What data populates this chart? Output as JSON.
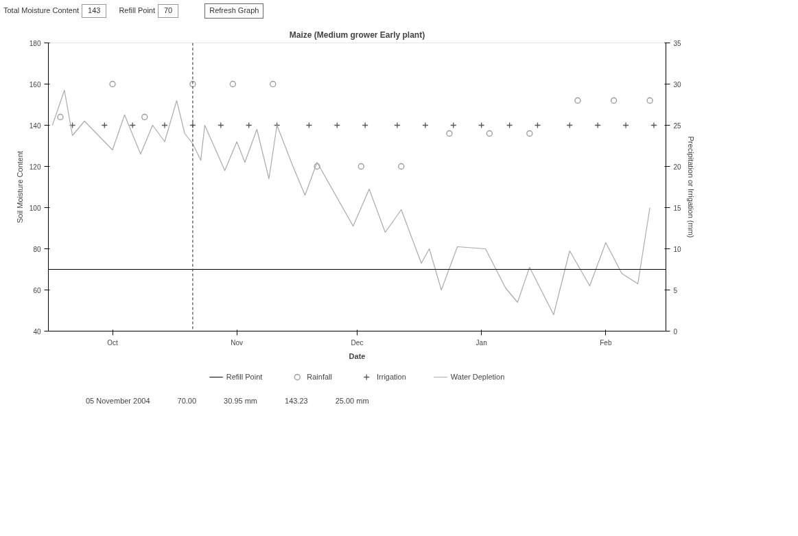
{
  "chart_data": {
    "type": "line",
    "title": "Maize (Medium grower Early plant)",
    "xlabel": "Date",
    "ylabel": "Soil Moisture Content",
    "y2label": "Precipitation or Irrigation (mm)",
    "annotations": [
      "Total Moisture Content",
      "143",
      "Refill Point",
      "70",
      "Refresh Graph",
      "05 November 2004",
      "70.00",
      "30.95 mm",
      "143.23",
      "25.00 mm"
    ],
    "xlim": [
      "2004-09-15",
      "2005-02-16"
    ],
    "xticks": [
      {
        "value": "2004-10-01",
        "label": "Oct"
      },
      {
        "value": "2004-11-01",
        "label": "Nov"
      },
      {
        "value": "2004-12-01",
        "label": "Dec"
      },
      {
        "value": "2005-01-01",
        "label": "Jan"
      },
      {
        "value": "2005-02-01",
        "label": "Feb"
      }
    ],
    "ylim": [
      40,
      180
    ],
    "yticks": [
      40,
      60,
      80,
      100,
      120,
      140,
      160,
      180
    ],
    "y2lim": [
      0,
      35
    ],
    "y2ticks": [
      0,
      5,
      10,
      15,
      20,
      25,
      30,
      35
    ],
    "ref_lines": [
      {
        "axis": "y",
        "value": 70,
        "label": "Refill Point",
        "color": "#000000",
        "line_style": "solid"
      },
      {
        "axis": "x",
        "value": "2004-10-21",
        "color": "#444444",
        "line_style": "dashed"
      }
    ],
    "legend": "bottom",
    "grid": false,
    "series": [
      {
        "name": "Rainfall",
        "type": "scatter",
        "marker": "circle",
        "axis": "y2",
        "color": "#999999",
        "x": [
          "2004-09-18",
          "2004-10-01",
          "2004-10-09",
          "2004-10-21",
          "2004-10-31",
          "2004-11-10",
          "2004-11-21",
          "2004-12-02",
          "2004-12-12",
          "2004-12-24",
          "2005-01-03",
          "2005-01-13",
          "2005-01-25",
          "2005-02-03",
          "2005-02-12"
        ],
        "values": [
          26,
          30,
          26,
          30,
          30,
          30,
          20,
          20,
          20,
          24,
          24,
          24,
          28,
          28,
          28
        ]
      },
      {
        "name": "Irrigation",
        "type": "scatter",
        "marker": "cross",
        "axis": "y2",
        "color": "#555555",
        "x": [
          "2004-09-21",
          "2004-09-29",
          "2004-10-06",
          "2004-10-14",
          "2004-10-21",
          "2004-10-28",
          "2004-11-04",
          "2004-11-11",
          "2004-11-19",
          "2004-11-26",
          "2004-12-03",
          "2004-12-11",
          "2004-12-18",
          "2004-12-25",
          "2005-01-01",
          "2005-01-08",
          "2005-01-15",
          "2005-01-23",
          "2005-01-30",
          "2005-02-06",
          "2005-02-13"
        ],
        "values": [
          25,
          25,
          25,
          25,
          25,
          25,
          25,
          25,
          25,
          25,
          25,
          25,
          25,
          25,
          25,
          25,
          25,
          25,
          25,
          25,
          25
        ]
      },
      {
        "name": "Water Depletion",
        "color": "#aaaaaa",
        "x": [
          "2004-09-16",
          "2004-09-19",
          "2004-09-21",
          "2004-09-24",
          "2004-10-01",
          "2004-10-04",
          "2004-10-08",
          "2004-10-11",
          "2004-10-14",
          "2004-10-17",
          "2004-10-19",
          "2004-10-21",
          "2004-10-23",
          "2004-10-24",
          "2004-10-29",
          "2004-11-01",
          "2004-11-03",
          "2004-11-06",
          "2004-11-09",
          "2004-11-11",
          "2004-11-15",
          "2004-11-18",
          "2004-11-21",
          "2004-11-30",
          "2004-12-04",
          "2004-12-08",
          "2004-12-12",
          "2004-12-17",
          "2004-12-19",
          "2004-12-22",
          "2004-12-26",
          "2005-01-02",
          "2005-01-07",
          "2005-01-10",
          "2005-01-13",
          "2005-01-19",
          "2005-01-23",
          "2005-01-28",
          "2005-02-01",
          "2005-02-05",
          "2005-02-09",
          "2005-02-12"
        ],
        "values": [
          140,
          157,
          135,
          142,
          128,
          145,
          126,
          140,
          132,
          152,
          136,
          131,
          123,
          140,
          118,
          132,
          122,
          138,
          114,
          140,
          120,
          106,
          122,
          91,
          109,
          88,
          99,
          73,
          80,
          60,
          81,
          80,
          61,
          54,
          71,
          48,
          79,
          62,
          83,
          68,
          63,
          100
        ]
      }
    ]
  }
}
